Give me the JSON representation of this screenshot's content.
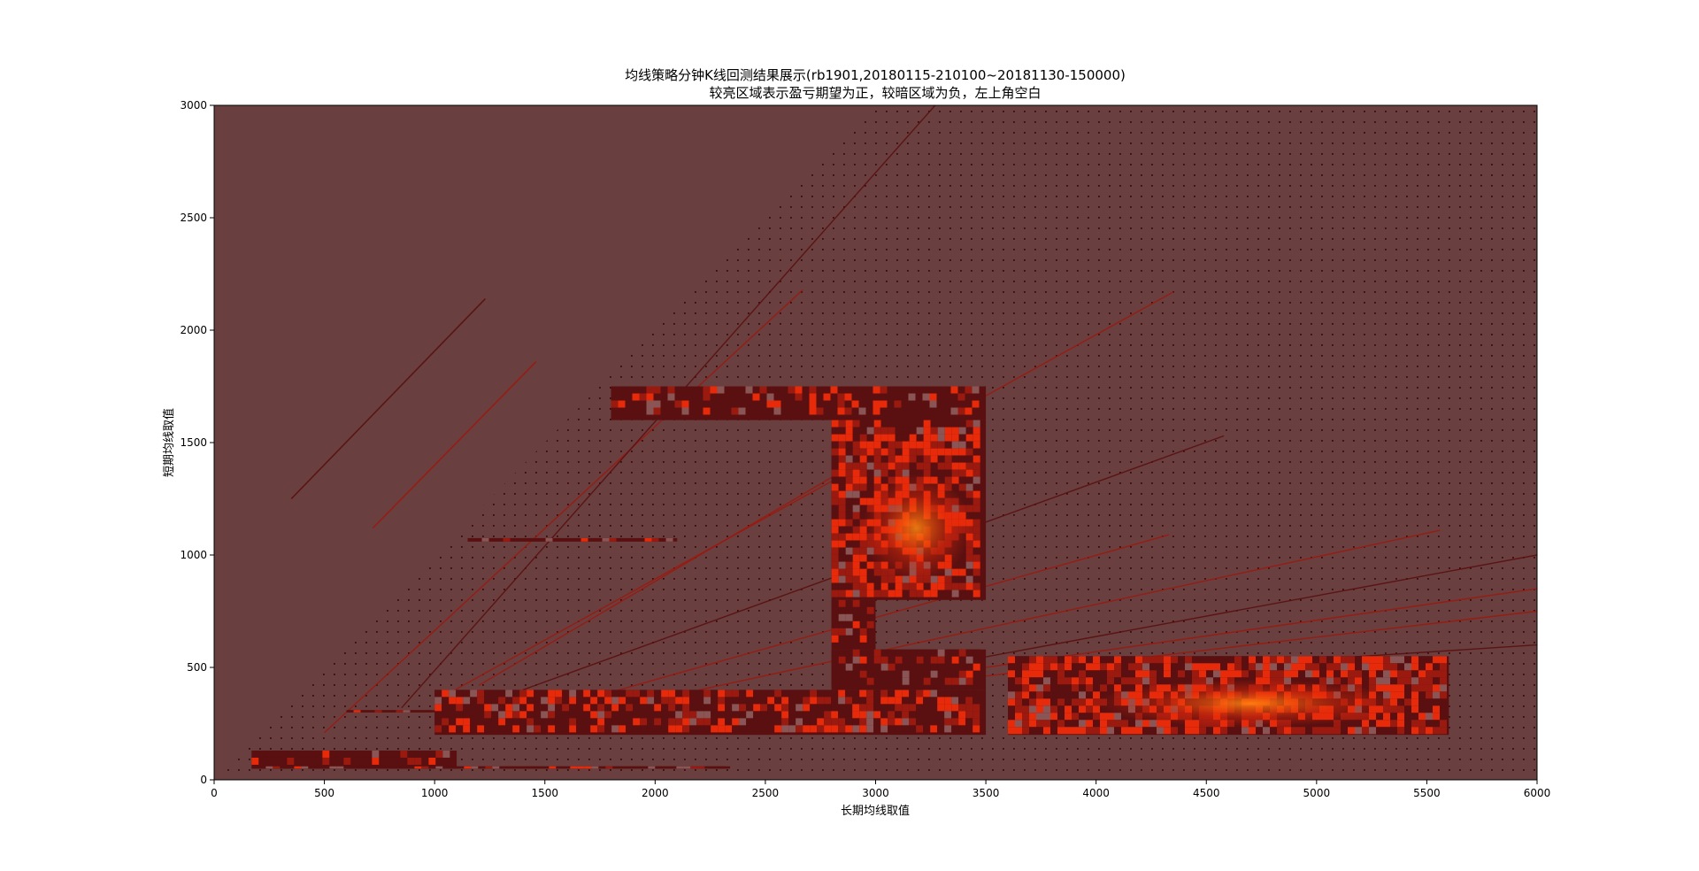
{
  "chart_data": {
    "type": "heatmap",
    "title_lines": [
      "均线策略分钟K线回测结果展示(rb1901,20180115-210100~20181130-150000)",
      "较亮区域表示盈亏期望为正，较暗区域为负，左上角空白"
    ],
    "xlabel": "长期均线取值",
    "ylabel": "短期均线取值",
    "xlim": [
      0,
      6000
    ],
    "ylim": [
      0,
      3000
    ],
    "xticks": [
      0,
      500,
      1000,
      1500,
      2000,
      2500,
      3000,
      3500,
      4000,
      4500,
      5000,
      5500,
      6000
    ],
    "yticks": [
      0,
      500,
      1000,
      1500,
      2000,
      2500,
      3000
    ],
    "grid": false,
    "colors": {
      "background": "#6a3f3f",
      "dark": "#5a1010",
      "mid": "#9a1a10",
      "bright": "#e62a0a",
      "hot": "#ff7a10"
    },
    "tested_regions": [
      {
        "x": [
          1800,
          3500
        ],
        "y": [
          1600,
          1750
        ]
      },
      {
        "x": [
          2800,
          3500
        ],
        "y": [
          800,
          1600
        ]
      },
      {
        "x": [
          2800,
          3000
        ],
        "y": [
          580,
          800
        ]
      },
      {
        "x": [
          1000,
          3500
        ],
        "y": [
          200,
          400
        ]
      },
      {
        "x": [
          2800,
          3500
        ],
        "y": [
          400,
          580
        ]
      },
      {
        "x": [
          3600,
          5600
        ],
        "y": [
          200,
          550
        ]
      },
      {
        "x": [
          1150,
          2100
        ],
        "y": [
          1060,
          1075
        ]
      },
      {
        "x": [
          170,
          1100
        ],
        "y": [
          50,
          130
        ]
      },
      {
        "x": [
          170,
          2340
        ],
        "y": [
          50,
          60
        ]
      },
      {
        "x": [
          600,
          1000
        ],
        "y": [
          300,
          310
        ]
      }
    ],
    "diagonal_lines": [
      {
        "from": [
          350,
          1250
        ],
        "to": [
          1230,
          2140
        ]
      },
      {
        "from": [
          720,
          1120
        ],
        "to": [
          1460,
          1860
        ]
      },
      {
        "from": [
          500,
          210
        ],
        "to": [
          2670,
          2180
        ]
      },
      {
        "from": [
          850,
          320
        ],
        "to": [
          3270,
          3000
        ]
      },
      {
        "from": [
          1200,
          420
        ],
        "to": [
          3500,
          1750
        ]
      },
      {
        "from": [
          1000,
          350
        ],
        "to": [
          4350,
          2170
        ]
      },
      {
        "from": [
          1400,
          400
        ],
        "to": [
          4580,
          1530
        ]
      },
      {
        "from": [
          1800,
          390
        ],
        "to": [
          4330,
          1090
        ]
      },
      {
        "from": [
          2200,
          400
        ],
        "to": [
          5560,
          1110
        ]
      },
      {
        "from": [
          2800,
          420
        ],
        "to": [
          6000,
          1000
        ]
      },
      {
        "from": [
          3000,
          430
        ],
        "to": [
          6000,
          850
        ]
      },
      {
        "from": [
          3400,
          450
        ],
        "to": [
          6000,
          750
        ]
      },
      {
        "from": [
          3800,
          460
        ],
        "to": [
          6000,
          600
        ]
      }
    ]
  }
}
